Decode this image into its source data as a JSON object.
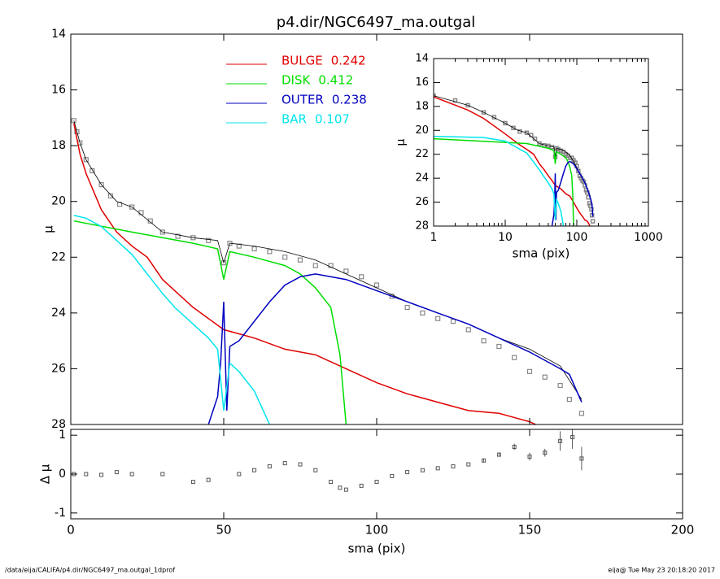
{
  "title": "p4.dir/NGC6497_ma.outgal",
  "footer_left": "/data/eija/CALIFA/p4.dir/NGC6497_ma.outgal_1dprof",
  "footer_right": "eija@  Tue May 23 20:18:20 2017",
  "chart_data": [
    {
      "type": "line",
      "ylabel": "μ",
      "xlim": [
        0,
        200
      ],
      "ylim": [
        28,
        14
      ],
      "yticks": [
        14,
        16,
        18,
        20,
        22,
        24,
        26,
        28
      ],
      "series": [
        {
          "style": "points",
          "color": "#888888",
          "x": [
            1,
            2,
            3,
            5,
            7,
            10,
            13,
            16,
            20,
            23,
            26,
            30,
            35,
            40,
            45,
            50,
            52,
            55,
            60,
            65,
            70,
            75,
            80,
            85,
            90,
            95,
            100,
            105,
            110,
            115,
            120,
            125,
            130,
            135,
            140,
            145,
            150,
            155,
            160,
            163,
            167
          ],
          "values": [
            17.1,
            17.5,
            17.9,
            18.5,
            18.9,
            19.4,
            19.8,
            20.1,
            20.2,
            20.4,
            20.7,
            21.1,
            21.25,
            21.3,
            21.4,
            22.2,
            21.5,
            21.6,
            21.7,
            21.8,
            22.0,
            22.1,
            22.3,
            22.3,
            22.5,
            22.7,
            23.0,
            23.4,
            23.8,
            24.0,
            24.2,
            24.3,
            24.6,
            25.0,
            25.2,
            25.6,
            26.1,
            26.3,
            26.6,
            27.1,
            27.6
          ]
        },
        {
          "style": "model",
          "color": "#000000",
          "x": [
            1,
            3,
            5,
            10,
            15,
            20,
            30,
            40,
            48,
            50,
            52,
            60,
            70,
            80,
            90,
            100,
            110,
            120,
            130,
            140,
            150,
            160,
            167
          ],
          "values": [
            17.1,
            17.9,
            18.5,
            19.4,
            20.0,
            20.2,
            21.1,
            21.3,
            21.4,
            22.2,
            21.5,
            21.6,
            21.8,
            22.1,
            22.6,
            23.1,
            23.6,
            24.0,
            24.4,
            24.9,
            25.3,
            25.9,
            27.1
          ]
        },
        {
          "name": "BULGE",
          "fraction": 0.242,
          "color": "#e00000",
          "x": [
            1,
            3,
            5,
            10,
            15,
            20,
            25,
            30,
            35,
            40,
            45,
            50,
            60,
            70,
            80,
            90,
            100,
            110,
            120,
            130,
            140,
            150,
            152
          ],
          "values": [
            17.2,
            18.3,
            19.0,
            20.3,
            21.1,
            21.6,
            22.0,
            22.8,
            23.3,
            23.8,
            24.2,
            24.6,
            24.9,
            25.3,
            25.5,
            26.0,
            26.5,
            26.9,
            27.2,
            27.5,
            27.6,
            27.9,
            28.0
          ]
        },
        {
          "name": "DISK",
          "fraction": 0.412,
          "color": "#00dd00",
          "x": [
            1,
            20,
            40,
            48,
            50,
            52,
            60,
            70,
            75,
            80,
            85,
            88,
            90
          ],
          "values": [
            20.7,
            21.1,
            21.5,
            21.7,
            22.8,
            21.8,
            22.0,
            22.3,
            22.6,
            23.1,
            23.8,
            25.5,
            28.0
          ]
        },
        {
          "name": "OUTER",
          "fraction": 0.238,
          "color": "#0000c0",
          "x": [
            45,
            48,
            49,
            50,
            51,
            52,
            55,
            60,
            65,
            70,
            75,
            80,
            90,
            100,
            110,
            120,
            130,
            140,
            150,
            155,
            160,
            163,
            167
          ],
          "values": [
            28.0,
            27.0,
            25.8,
            23.6,
            27.5,
            25.2,
            25.0,
            24.3,
            23.6,
            23.0,
            22.7,
            22.6,
            22.8,
            23.2,
            23.6,
            24.0,
            24.4,
            24.9,
            25.4,
            25.7,
            26.0,
            26.2,
            27.2
          ]
        },
        {
          "name": "BAR",
          "fraction": 0.107,
          "color": "#00e5ee",
          "x": [
            1,
            5,
            10,
            20,
            30,
            34,
            40,
            45,
            48,
            50,
            52,
            55,
            60,
            65
          ],
          "values": [
            20.5,
            20.6,
            20.9,
            21.9,
            23.3,
            23.8,
            24.4,
            24.9,
            25.3,
            27.5,
            25.8,
            26.1,
            26.8,
            28.0
          ]
        }
      ]
    },
    {
      "type": "scatter",
      "xlabel": "sma (pix)",
      "ylabel": "Δ μ",
      "xlim": [
        0,
        200
      ],
      "xticks": [
        0,
        50,
        100,
        150,
        200
      ],
      "ylim": [
        -1.15,
        1.15
      ],
      "yticks": [
        -1,
        0,
        1
      ],
      "color": "#555555",
      "x": [
        1,
        5,
        10,
        15,
        20,
        30,
        40,
        45,
        55,
        60,
        65,
        70,
        75,
        80,
        85,
        88,
        90,
        95,
        100,
        105,
        110,
        115,
        120,
        125,
        130,
        135,
        140,
        145,
        150,
        155,
        160,
        164,
        167
      ],
      "values": [
        0,
        0,
        -0.02,
        0.05,
        0,
        0,
        -0.2,
        -0.15,
        0,
        0.1,
        0.2,
        0.28,
        0.25,
        0.1,
        -0.2,
        -0.35,
        -0.4,
        -0.3,
        -0.2,
        -0.05,
        0.05,
        0.1,
        0.15,
        0.2,
        0.25,
        0.35,
        0.5,
        0.7,
        0.45,
        0.55,
        0.85,
        0.95,
        0.4
      ],
      "errors": [
        0,
        0,
        0,
        0,
        0,
        0,
        0,
        0,
        0,
        0,
        0,
        0,
        0,
        0,
        0,
        0,
        0,
        0,
        0,
        0,
        0,
        0,
        0,
        0,
        0,
        0.05,
        0.05,
        0.08,
        0.1,
        0.1,
        0.25,
        0.3,
        0.3
      ]
    },
    {
      "type": "inset",
      "xlabel": "sma (pix)",
      "ylabel": "μ",
      "xlog": true,
      "xlim": [
        1,
        1000
      ],
      "xticks": [
        1,
        10,
        100,
        1000
      ],
      "ylim": [
        28,
        14
      ],
      "yticks": [
        14,
        16,
        18,
        20,
        22,
        24,
        26,
        28
      ]
    }
  ]
}
